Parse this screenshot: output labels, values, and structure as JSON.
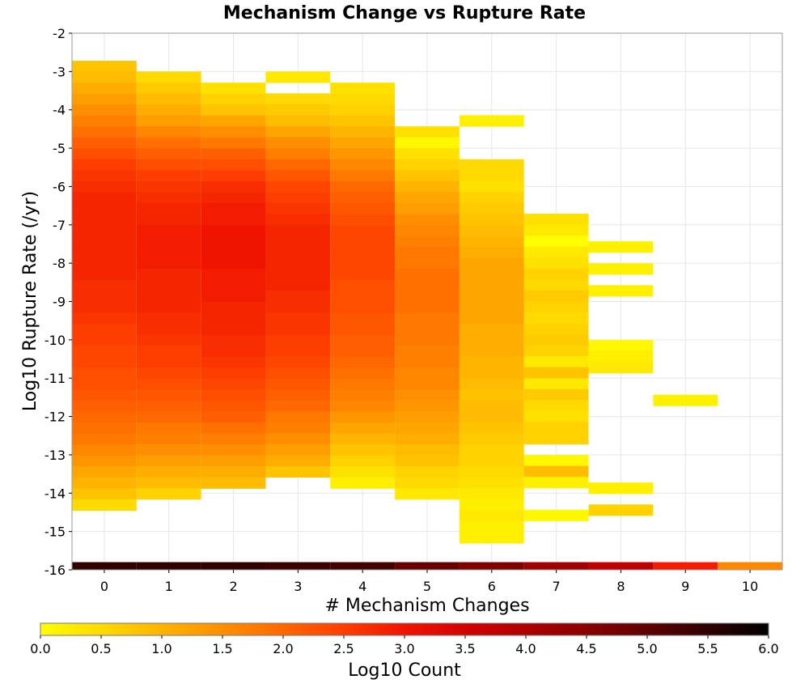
{
  "chart_data": {
    "type": "heatmap",
    "title": "Mechanism Change vs Rupture Rate",
    "xlabel": "# Mechanism Changes",
    "ylabel": "Log10 Rupture Rate (/yr)",
    "xlim": [
      -0.5,
      10.5
    ],
    "ylim": [
      -16,
      -2
    ],
    "x_ticks": [
      "0",
      "1",
      "2",
      "3",
      "4",
      "5",
      "6",
      "7",
      "8",
      "9",
      "10"
    ],
    "y_ticks": [
      "-2",
      "-3",
      "-4",
      "-5",
      "-6",
      "-7",
      "-8",
      "-9",
      "-10",
      "-11",
      "-12",
      "-13",
      "-14",
      "-15",
      "-16"
    ],
    "grid": true,
    "bin_height": 0.286,
    "colorbar": {
      "label": "Log10 Count",
      "min": 0.0,
      "max": 6.0,
      "ticks": [
        "0.0",
        "0.5",
        "1.0",
        "1.5",
        "2.0",
        "2.5",
        "3.0",
        "3.5",
        "4.0",
        "4.5",
        "5.0",
        "5.5",
        "6.0"
      ],
      "colormap": [
        "#ffff00",
        "#ffd200",
        "#ffa500",
        "#ff7800",
        "#ff4600",
        "#f01400",
        "#cd0000",
        "#a00000",
        "#700000",
        "#3a0000",
        "#000000"
      ]
    },
    "columns": [
      {
        "x": 0,
        "y_top": -2.72,
        "values": [
          0.8,
          0.9,
          1.1,
          1.3,
          1.5,
          1.7,
          1.9,
          2.1,
          2.3,
          2.5,
          2.6,
          2.7,
          2.8,
          2.8,
          2.8,
          2.8,
          2.8,
          2.8,
          2.8,
          2.8,
          2.7,
          2.7,
          2.7,
          2.6,
          2.5,
          2.5,
          2.4,
          2.4,
          2.3,
          2.3,
          2.2,
          2.1,
          2.0,
          1.9,
          1.8,
          1.6,
          1.4,
          1.2,
          1.0,
          0.8,
          0.5
        ]
      },
      {
        "x": 1,
        "y_top": -3.0,
        "values": [
          0.5,
          0.7,
          0.9,
          1.1,
          1.3,
          1.6,
          1.9,
          2.1,
          2.3,
          2.5,
          2.6,
          2.7,
          2.8,
          2.8,
          2.9,
          2.9,
          2.9,
          2.9,
          2.8,
          2.8,
          2.8,
          2.8,
          2.7,
          2.7,
          2.6,
          2.5,
          2.5,
          2.4,
          2.3,
          2.2,
          2.1,
          2.0,
          1.8,
          1.7,
          1.5,
          1.3,
          1.1,
          0.9,
          0.6
        ]
      },
      {
        "x": 2,
        "y_top": -3.29,
        "values": [
          0.4,
          0.6,
          0.8,
          1.2,
          1.5,
          1.8,
          2.1,
          2.3,
          2.5,
          2.7,
          2.8,
          2.9,
          2.9,
          3.0,
          3.0,
          3.0,
          3.0,
          2.9,
          2.9,
          2.9,
          2.8,
          2.8,
          2.8,
          2.7,
          2.7,
          2.6,
          2.5,
          2.4,
          2.3,
          2.2,
          2.1,
          1.9,
          1.7,
          1.5,
          1.3,
          1.1,
          0.9
        ]
      },
      {
        "x": 3,
        "y_top": -3.57,
        "values": [
          0.5,
          0.7,
          0.9,
          1.2,
          1.5,
          1.7,
          2.0,
          2.2,
          2.4,
          2.5,
          2.6,
          2.7,
          2.8,
          2.8,
          2.8,
          2.8,
          2.8,
          2.8,
          2.7,
          2.7,
          2.6,
          2.6,
          2.5,
          2.5,
          2.4,
          2.3,
          2.2,
          2.1,
          2.0,
          1.8,
          1.7,
          1.5,
          1.3,
          1.1,
          0.8
        ]
      },
      {
        "x": 3,
        "y_top": -3.0,
        "values": [
          0.3
        ]
      },
      {
        "x": 4,
        "y_top": -3.29,
        "values": [
          0.4,
          0.5,
          0.6,
          0.8,
          1.0,
          1.2,
          1.4,
          1.6,
          1.8,
          2.0,
          2.1,
          2.2,
          2.3,
          2.4,
          2.4,
          2.4,
          2.4,
          2.4,
          2.3,
          2.3,
          2.3,
          2.2,
          2.2,
          2.1,
          2.1,
          2.0,
          1.9,
          1.8,
          1.7,
          1.6,
          1.4,
          1.2,
          1.0,
          0.8,
          0.6,
          0.4,
          0.2
        ]
      },
      {
        "x": 5,
        "y_top": -4.43,
        "values": [
          0.4,
          0.1,
          0.4,
          0.6,
          0.8,
          1.0,
          1.2,
          1.3,
          1.5,
          1.6,
          1.7,
          1.8,
          1.8,
          1.9,
          1.9,
          1.9,
          1.9,
          1.8,
          1.8,
          1.8,
          1.7,
          1.7,
          1.6,
          1.6,
          1.5,
          1.4,
          1.3,
          1.2,
          1.1,
          0.9,
          0.8,
          0.6,
          0.5,
          0.3
        ]
      },
      {
        "x": 6,
        "y_top": -5.29,
        "values": [
          0.5,
          0.5,
          0.4,
          0.6,
          0.7,
          0.8,
          0.9,
          1.0,
          1.1,
          1.2,
          1.2,
          1.2,
          1.2,
          1.2,
          1.2,
          1.1,
          1.1,
          1.1,
          1.0,
          1.0,
          0.9,
          0.8,
          0.9,
          0.9,
          0.8,
          0.7,
          0.6,
          0.6,
          0.5,
          0.4,
          0.3,
          0.2,
          0.3,
          0.2,
          0.2
        ]
      },
      {
        "x": 6,
        "y_top": -4.14,
        "values": [
          0.2
        ]
      },
      {
        "x": 7,
        "y_top": -6.71,
        "values": [
          0.4,
          0.3,
          0.0,
          0.3,
          0.4,
          0.6,
          0.5,
          0.7,
          0.6,
          0.5,
          0.6,
          0.7,
          0.6,
          0.3,
          0.8,
          0.3,
          0.7,
          0.5,
          0.4,
          0.6,
          0.6,
          null,
          0.1,
          0.9,
          0.2,
          null,
          null,
          0.1
        ]
      },
      {
        "x": 8,
        "y_top": -7.43,
        "values": [
          0.2,
          null,
          0.2,
          null,
          0.2,
          null,
          null,
          null,
          null,
          0.1,
          0.2,
          0.3,
          null,
          null,
          null,
          null,
          null,
          null,
          null,
          null,
          null,
          null,
          0.2,
          null,
          0.6
        ]
      },
      {
        "x": 9,
        "y_top": -11.43,
        "values": [
          0.2
        ]
      }
    ],
    "base_row": {
      "y": -16,
      "values": [
        5.5,
        5.5,
        5.5,
        5.4,
        5.3,
        4.9,
        4.6,
        4.2,
        3.8,
        2.9,
        1.6
      ]
    }
  }
}
